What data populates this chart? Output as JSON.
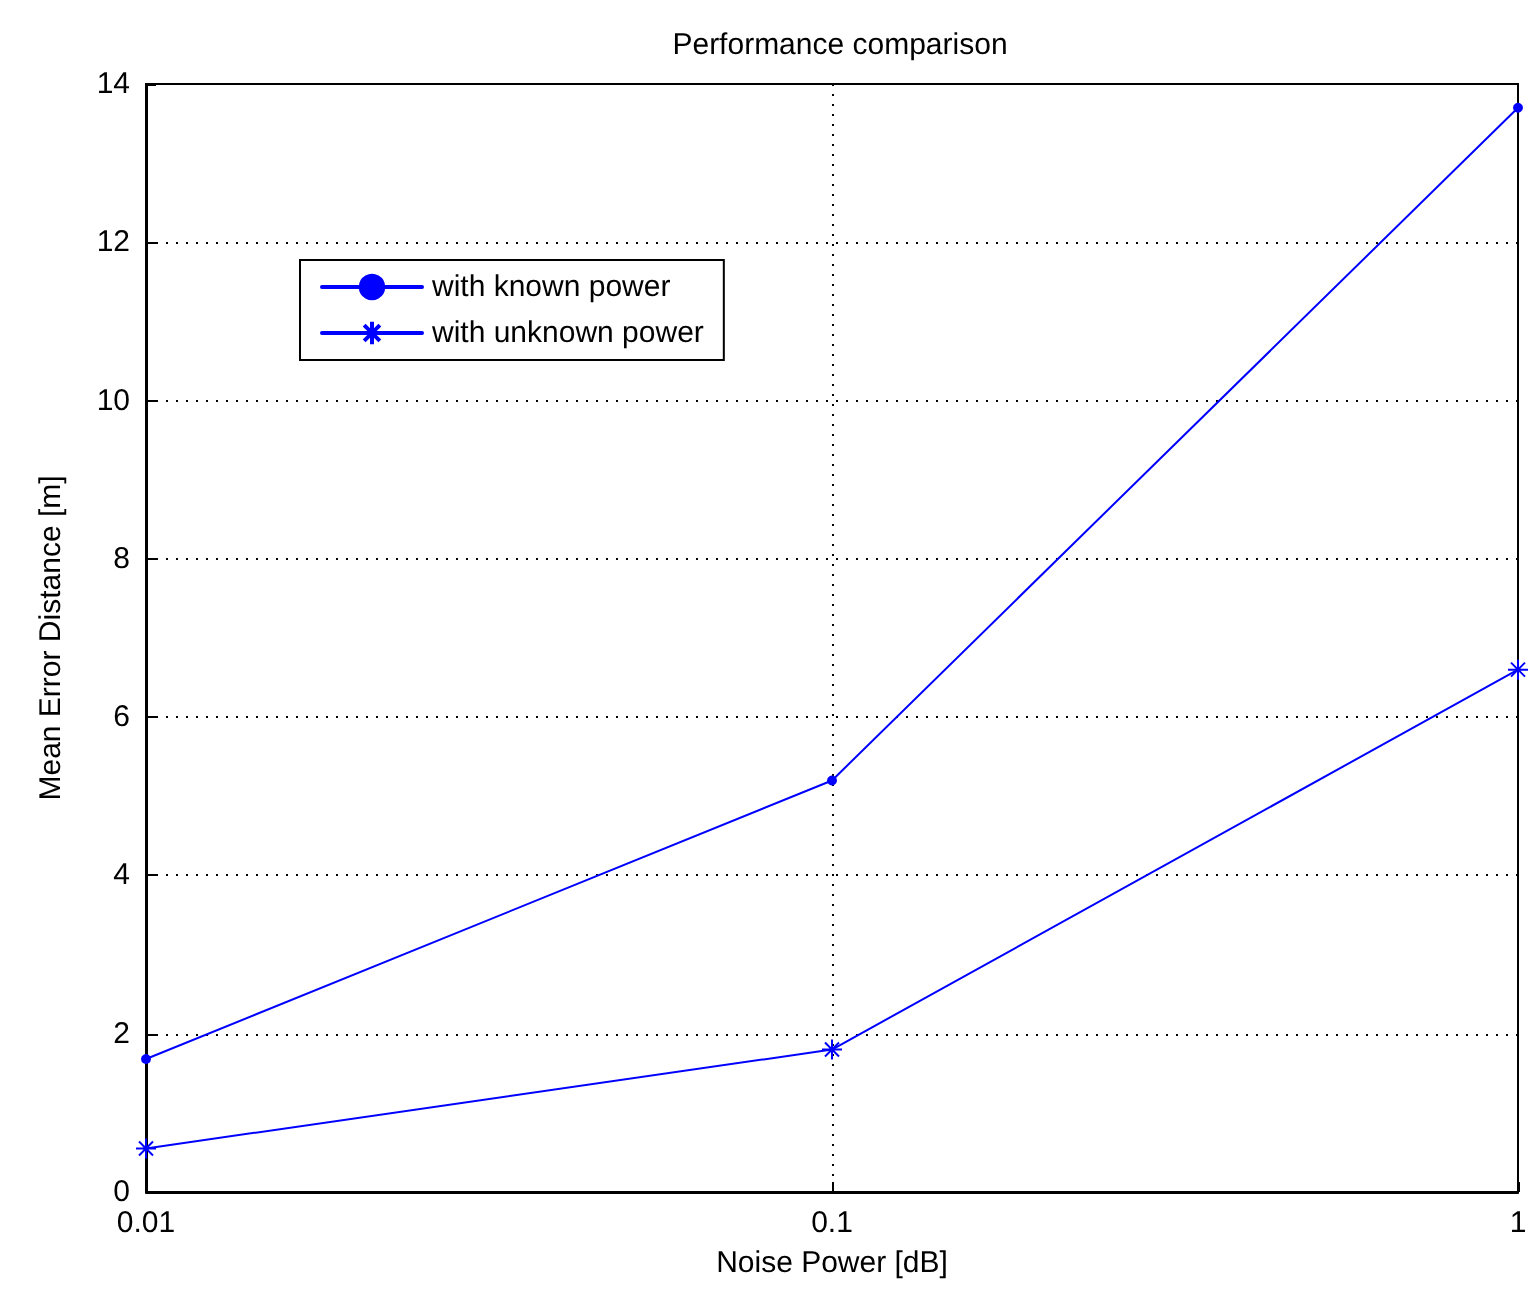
{
  "chart_data": {
    "type": "line",
    "title": "Performance comparison",
    "xlabel": "Noise Power [dB]",
    "ylabel": "Mean Error Distance [m]",
    "x": [
      0.01,
      0.1,
      1
    ],
    "series": [
      {
        "name": "with known power",
        "color": "#0000ff",
        "marker": "circle",
        "values": [
          1.68,
          5.2,
          13.7
        ]
      },
      {
        "name": "with unknown power",
        "color": "#0000ff",
        "marker": "cross",
        "values": [
          0.55,
          1.8,
          6.6
        ]
      }
    ],
    "log": "x",
    "xlim": [
      0.01,
      1
    ],
    "xticks": [
      0.01,
      0.1,
      1
    ],
    "ylim": [
      0,
      14
    ],
    "yticks": [
      0,
      2,
      4,
      6,
      8,
      10,
      12,
      14
    ],
    "grid": true,
    "legend": "top left",
    "line_style": "solid"
  }
}
